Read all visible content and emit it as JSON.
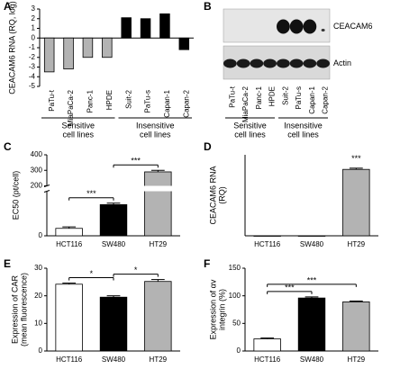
{
  "chart_data": [
    {
      "panel": "A",
      "type": "bar",
      "ylabel": [
        "CEACAM6 RNA (RQ, log)"
      ],
      "categories": [
        "PaTu-t",
        "MiaPaCa-2",
        "Panc-1",
        "HPDE",
        "Suit-2",
        "PaTu-s",
        "Capan-1",
        "Capan-2"
      ],
      "values": [
        -3.5,
        -3.2,
        -2,
        -2,
        2.1,
        2.0,
        2.5,
        -1.2
      ],
      "colors": [
        "#b3b3b3",
        "#b3b3b3",
        "#b3b3b3",
        "#b3b3b3",
        "#000000",
        "#000000",
        "#000000",
        "#000000"
      ],
      "ylim": [
        -5,
        3
      ],
      "yticks": [
        -5,
        -4,
        -3,
        -2,
        -1,
        0,
        1,
        2,
        3
      ],
      "groups": [
        {
          "label": [
            "Sensitive",
            "cell lines"
          ],
          "members": [
            "PaTu-t",
            "MiaPaCa-2",
            "Panc-1",
            "HPDE"
          ]
        },
        {
          "label": [
            "Insensitive",
            "cell lines"
          ],
          "members": [
            "Suit-2",
            "PaTu-s",
            "Capan-1",
            "Capan-2"
          ]
        }
      ]
    },
    {
      "panel": "B",
      "type": "blot",
      "rows": [
        "CEACAM6",
        "Actin"
      ],
      "categories": [
        "PaTu-t",
        "MiaPaCa-2",
        "Panc-1",
        "HPDE",
        "Suit-2",
        "PaTu-s",
        "Capan-1",
        "Capan-2"
      ],
      "groups": [
        {
          "label": [
            "Sensitive",
            "cell lines"
          ],
          "members": [
            "PaTu-t",
            "MiaPaCa-2",
            "Panc-1",
            "HPDE"
          ]
        },
        {
          "label": [
            "Insensitive",
            "cell lines"
          ],
          "members": [
            "Suit-2",
            "PaTu-s",
            "Capan-1",
            "Capan-2"
          ]
        }
      ]
    },
    {
      "panel": "C",
      "type": "bar",
      "ylabel": [
        "EC50 (pt/cell)"
      ],
      "categories": [
        "HCT116",
        "SW480",
        "HT29"
      ],
      "values": [
        5,
        21,
        290
      ],
      "errors": [
        1,
        1,
        10
      ],
      "colors": [
        "#ffffff",
        "#000000",
        "#b3b3b3"
      ],
      "ylim": [
        0,
        400
      ],
      "break": [
        30,
        200
      ],
      "yticks": [
        0,
        200,
        300,
        400
      ],
      "annotations": [
        {
          "text": "***",
          "between": [
            "HCT116",
            "SW480"
          ]
        },
        {
          "text": "***",
          "between": [
            "SW480",
            "HT29"
          ]
        }
      ]
    },
    {
      "panel": "D",
      "type": "bar",
      "ylabel": [
        "CEACAM6 RNA",
        "(RQ)"
      ],
      "categories": [
        "HCT116",
        "SW480",
        "HT29"
      ],
      "values": [
        0,
        0,
        8.2
      ],
      "errors": [
        0,
        0,
        0.15
      ],
      "colors": [
        "#ffffff",
        "#000000",
        "#b3b3b3"
      ],
      "ylim": [
        0,
        10
      ],
      "annotations": [
        {
          "text": "***",
          "between": [
            "HT29"
          ]
        }
      ]
    },
    {
      "panel": "E",
      "type": "bar",
      "ylabel": [
        "Expression of CAR",
        "(mean fluorescence)"
      ],
      "categories": [
        "HCT116",
        "SW480",
        "HT29"
      ],
      "values": [
        24.2,
        19.5,
        25.2
      ],
      "errors": [
        0.4,
        0.5,
        0.7
      ],
      "colors": [
        "#ffffff",
        "#000000",
        "#b3b3b3"
      ],
      "ylim": [
        0,
        30
      ],
      "yticks": [
        0,
        10,
        20,
        30
      ],
      "annotations": [
        {
          "text": "*",
          "between": [
            "HCT116",
            "SW480"
          ]
        },
        {
          "text": "*",
          "between": [
            "SW480",
            "HT29"
          ]
        }
      ]
    },
    {
      "panel": "F",
      "type": "bar",
      "ylabel": [
        "Expression of αv",
        "integrin (%)"
      ],
      "categories": [
        "HCT116",
        "SW480",
        "HT29"
      ],
      "values": [
        22,
        96,
        89
      ],
      "errors": [
        1.5,
        2,
        1.5
      ],
      "colors": [
        "#ffffff",
        "#000000",
        "#b3b3b3"
      ],
      "ylim": [
        0,
        150
      ],
      "yticks": [
        0,
        50,
        100,
        150
      ],
      "annotations": [
        {
          "text": "***",
          "between": [
            "HCT116",
            "SW480"
          ]
        },
        {
          "text": "***",
          "between": [
            "HCT116",
            "HT29"
          ]
        }
      ]
    }
  ]
}
